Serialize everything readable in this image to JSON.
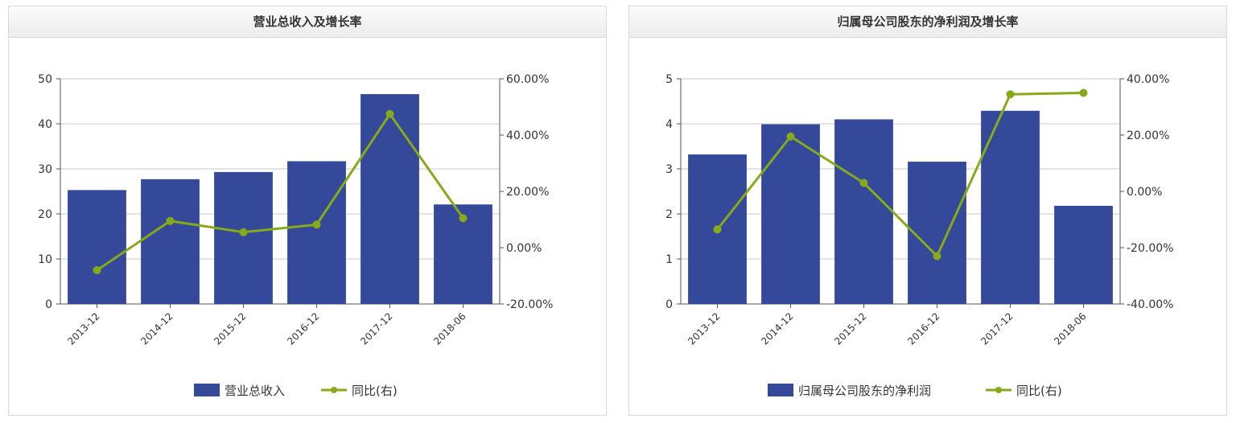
{
  "colors": {
    "bar": "#34499a",
    "line": "#86aa1a",
    "grid": "#c8c8c8",
    "axis": "#555555"
  },
  "chart_data": [
    {
      "type": "bar",
      "title": "营业总收入及增长率",
      "categories": [
        "2013-12",
        "2014-12",
        "2015-12",
        "2016-12",
        "2017-12",
        "2018-06"
      ],
      "series": [
        {
          "name": "营业总收入",
          "type": "bar",
          "axis": "left",
          "values": [
            25.3,
            27.7,
            29.3,
            31.7,
            46.6,
            22.1
          ]
        },
        {
          "name": "同比(右)",
          "type": "line",
          "axis": "right",
          "values": [
            -8,
            9.5,
            5.5,
            8.2,
            47.5,
            10.5
          ]
        }
      ],
      "ylim": [
        0,
        50
      ],
      "yticks": [
        "0",
        "10",
        "20",
        "30",
        "40",
        "50"
      ],
      "y2lim": [
        -20,
        60
      ],
      "y2ticks": [
        "-20.00%",
        "0.00%",
        "20.00%",
        "40.00%",
        "60.00%"
      ],
      "legend_position": "bottom-center",
      "grid": true
    },
    {
      "type": "bar",
      "title": "归属母公司股东的净利润及增长率",
      "categories": [
        "2013-12",
        "2014-12",
        "2015-12",
        "2016-12",
        "2017-12",
        "2018-06"
      ],
      "series": [
        {
          "name": "归属母公司股东的净利润",
          "type": "bar",
          "axis": "left",
          "values": [
            3.32,
            3.99,
            4.1,
            3.16,
            4.29,
            2.18
          ]
        },
        {
          "name": "同比(右)",
          "type": "line",
          "axis": "right",
          "values": [
            -13.5,
            19.5,
            3,
            -23,
            34.5,
            35
          ]
        }
      ],
      "ylim": [
        0,
        5
      ],
      "yticks": [
        "0",
        "1",
        "2",
        "3",
        "4",
        "5"
      ],
      "y2lim": [
        -40,
        40
      ],
      "y2ticks": [
        "-40.00%",
        "-20.00%",
        "0.00%",
        "20.00%",
        "40.00%"
      ],
      "legend_position": "bottom-center",
      "grid": true
    }
  ]
}
